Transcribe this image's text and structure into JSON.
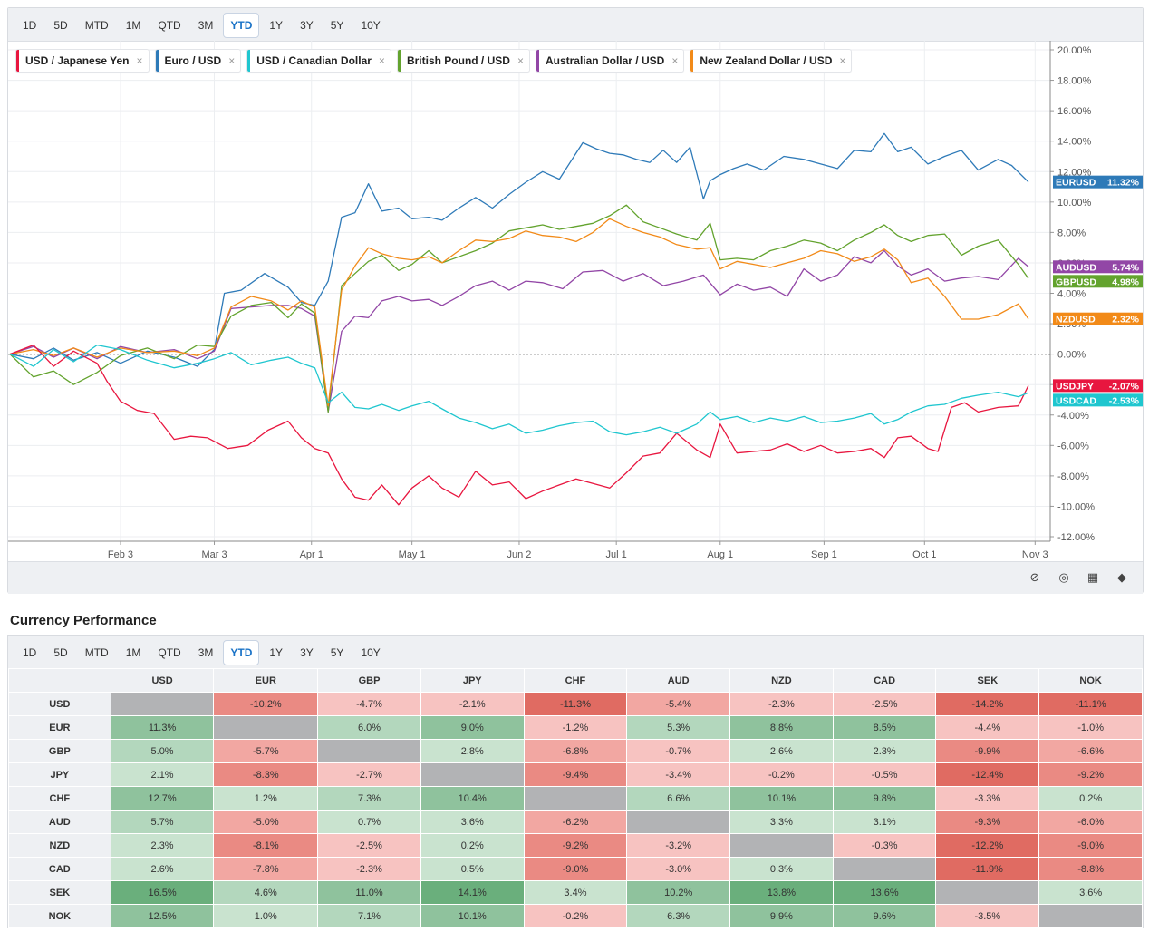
{
  "timeframes": [
    "1D",
    "5D",
    "MTD",
    "1M",
    "QTD",
    "3M",
    "YTD",
    "1Y",
    "3Y",
    "5Y",
    "10Y"
  ],
  "active_timeframe": "YTD",
  "chips": [
    {
      "label": "USD / Japanese Yen",
      "color": "#e8163f"
    },
    {
      "label": "Euro / USD",
      "color": "#2e7ab8"
    },
    {
      "label": "USD / Canadian Dollar",
      "color": "#1fc6cf"
    },
    {
      "label": "British Pound / USD",
      "color": "#63a32e"
    },
    {
      "label": "Australian Dollar / USD",
      "color": "#9246a6"
    },
    {
      "label": "New Zealand Dollar / USD",
      "color": "#f28a18"
    }
  ],
  "chip_close": "×",
  "tool_icons": [
    "eye-slash-icon",
    "target-icon",
    "grid-icon",
    "tag-icon"
  ],
  "chart_data": {
    "type": "line",
    "xlabel": "",
    "ylabel": "",
    "ylim": [
      -12,
      20
    ],
    "y_ticks": [
      "20.00%",
      "18.00%",
      "16.00%",
      "14.00%",
      "12.00%",
      "10.00%",
      "8.00%",
      "6.00%",
      "4.00%",
      "2.00%",
      "0.00%",
      "-2.00%",
      "-4.00%",
      "-6.00%",
      "-8.00%",
      "-10.00%",
      "-12.00%"
    ],
    "x_ticks": [
      "Feb 3",
      "Mar 3",
      "Apr 1",
      "May 1",
      "Jun 2",
      "Jul 1",
      "Aug 1",
      "Sep 1",
      "Oct 1",
      "Nov 3"
    ],
    "x_tick_days": [
      34,
      62,
      91,
      121,
      153,
      182,
      213,
      244,
      274,
      307
    ],
    "x_range": [
      1,
      308
    ],
    "series": [
      {
        "name": "EURUSD",
        "label": "11.32%",
        "color": "#2e7ab8",
        "final": 11.32,
        "x": [
          1,
          8,
          14,
          20,
          27,
          34,
          42,
          50,
          57,
          62,
          65,
          70,
          77,
          84,
          88,
          92,
          96,
          100,
          104,
          108,
          112,
          117,
          121,
          126,
          130,
          135,
          140,
          145,
          150,
          155,
          160,
          165,
          172,
          176,
          180,
          184,
          188,
          192,
          196,
          200,
          204,
          208,
          210,
          213,
          217,
          221,
          226,
          232,
          238,
          243,
          248,
          253,
          258,
          262,
          266,
          270,
          275,
          280,
          285,
          290,
          296,
          300,
          305
        ],
        "y": [
          0,
          -0.3,
          0.4,
          -0.4,
          0.1,
          -0.6,
          0.2,
          -0.2,
          -0.8,
          0.3,
          4,
          4.2,
          5.3,
          4.4,
          3.4,
          3.2,
          4.8,
          9,
          9.3,
          11.2,
          9.4,
          9.6,
          8.9,
          9,
          8.8,
          9.6,
          10.3,
          9.6,
          10.5,
          11.3,
          12,
          11.5,
          13.9,
          13.5,
          13.2,
          13.1,
          12.8,
          12.6,
          13.4,
          12.6,
          13.6,
          10.2,
          11.4,
          11.8,
          12.2,
          12.5,
          12.1,
          13,
          12.8,
          12.5,
          12.2,
          13.4,
          13.3,
          14.5,
          13.3,
          13.6,
          12.5,
          13,
          13.4,
          12.1,
          12.8,
          12.4,
          11.32
        ]
      },
      {
        "name": "AUDUSD",
        "label": "5.74%",
        "color": "#9246a6",
        "final": 5.74,
        "x": [
          1,
          8,
          14,
          20,
          27,
          34,
          42,
          50,
          57,
          62,
          67,
          73,
          79,
          84,
          88,
          92,
          96,
          100,
          104,
          108,
          112,
          117,
          121,
          126,
          130,
          135,
          140,
          145,
          150,
          155,
          160,
          166,
          172,
          178,
          184,
          190,
          196,
          202,
          208,
          213,
          218,
          223,
          228,
          233,
          238,
          243,
          248,
          253,
          258,
          262,
          266,
          270,
          275,
          280,
          285,
          290,
          296,
          302,
          305
        ],
        "y": [
          0,
          0.5,
          -0.2,
          0.4,
          -0.3,
          0.5,
          0.1,
          0.3,
          -0.3,
          0.2,
          3,
          3.1,
          3.2,
          3.2,
          3,
          2.5,
          -3.8,
          1.5,
          2.5,
          2.4,
          3.5,
          3.8,
          3.5,
          3.6,
          3.2,
          3.8,
          4.5,
          4.8,
          4.2,
          4.8,
          4.7,
          4.3,
          5.4,
          5.5,
          4.8,
          5.3,
          4.5,
          4.8,
          5.2,
          3.9,
          4.6,
          4.2,
          4.4,
          3.8,
          5.6,
          4.8,
          5.2,
          6.4,
          6,
          6.8,
          5.8,
          5.2,
          5.6,
          4.8,
          5,
          5.1,
          4.9,
          6.3,
          5.74
        ]
      },
      {
        "name": "GBPUSD",
        "label": "4.98%",
        "color": "#63a32e",
        "final": 4.98,
        "x": [
          1,
          8,
          14,
          20,
          27,
          34,
          42,
          50,
          57,
          62,
          67,
          73,
          79,
          84,
          88,
          92,
          96,
          100,
          104,
          108,
          112,
          117,
          121,
          126,
          130,
          135,
          140,
          145,
          150,
          155,
          160,
          165,
          170,
          175,
          180,
          185,
          190,
          195,
          200,
          206,
          210,
          213,
          218,
          223,
          228,
          233,
          238,
          243,
          248,
          253,
          258,
          262,
          266,
          270,
          275,
          280,
          285,
          290,
          296,
          302,
          305
        ],
        "y": [
          0,
          -1.5,
          -1.1,
          -2,
          -1.2,
          -0.1,
          0.4,
          -0.3,
          0.6,
          0.5,
          2.5,
          3.2,
          3.4,
          2.4,
          3.3,
          2.7,
          -3.8,
          4.5,
          5.3,
          6.1,
          6.5,
          5.5,
          5.9,
          6.8,
          6,
          6.4,
          6.8,
          7.3,
          8.1,
          8.3,
          8.5,
          8.2,
          8.4,
          8.6,
          9.1,
          9.8,
          8.7,
          8.3,
          7.9,
          7.5,
          8.6,
          6.2,
          6.3,
          6.2,
          6.8,
          7.1,
          7.5,
          7.3,
          6.8,
          7.5,
          8,
          8.5,
          7.8,
          7.4,
          7.8,
          7.9,
          6.5,
          7.1,
          7.5,
          5.9,
          4.98
        ]
      },
      {
        "name": "NZDUSD",
        "label": "2.32%",
        "color": "#f28a18",
        "final": 2.32,
        "x": [
          1,
          8,
          14,
          20,
          27,
          34,
          42,
          50,
          57,
          62,
          67,
          73,
          79,
          84,
          88,
          92,
          96,
          100,
          104,
          108,
          112,
          117,
          121,
          126,
          130,
          135,
          140,
          145,
          150,
          155,
          160,
          165,
          170,
          175,
          180,
          185,
          190,
          195,
          200,
          206,
          210,
          213,
          218,
          223,
          228,
          233,
          238,
          243,
          248,
          253,
          258,
          262,
          266,
          270,
          275,
          280,
          285,
          290,
          296,
          302,
          305
        ],
        "y": [
          0,
          0.3,
          -0.1,
          0.4,
          -0.2,
          0.4,
          0.1,
          0.2,
          -0.1,
          0.4,
          3.1,
          3.8,
          3.5,
          2.9,
          3.5,
          3.1,
          -3.4,
          4.2,
          5.8,
          7,
          6.6,
          6.3,
          6.2,
          6.4,
          6,
          6.8,
          7.5,
          7.4,
          7.6,
          8.1,
          7.8,
          7.7,
          7.4,
          8,
          8.9,
          8.4,
          8,
          7.7,
          7.2,
          6.9,
          7,
          5.6,
          6.1,
          5.9,
          5.7,
          6,
          6.3,
          6.8,
          6.6,
          6.1,
          6.4,
          6.9,
          6.2,
          4.7,
          5,
          3.8,
          2.3,
          2.3,
          2.6,
          3.3,
          2.32
        ]
      },
      {
        "name": "USDJPY",
        "label": "-2.07%",
        "color": "#e8163f",
        "final": -2.07,
        "x": [
          1,
          8,
          14,
          20,
          27,
          30,
          34,
          39,
          44,
          50,
          55,
          60,
          66,
          72,
          78,
          84,
          88,
          92,
          96,
          100,
          104,
          108,
          112,
          117,
          121,
          126,
          130,
          135,
          140,
          145,
          150,
          155,
          160,
          165,
          170,
          175,
          180,
          185,
          190,
          195,
          200,
          206,
          210,
          213,
          218,
          223,
          228,
          233,
          238,
          243,
          248,
          253,
          258,
          262,
          266,
          270,
          275,
          278,
          282,
          286,
          290,
          296,
          302,
          305
        ],
        "y": [
          0,
          0.6,
          -0.8,
          0.2,
          -0.6,
          -1.8,
          -3.1,
          -3.7,
          -3.9,
          -5.6,
          -5.4,
          -5.5,
          -6.2,
          -6,
          -5,
          -4.4,
          -5.5,
          -6.2,
          -6.5,
          -8.2,
          -9.4,
          -9.6,
          -8.6,
          -9.9,
          -8.8,
          -8,
          -8.8,
          -9.4,
          -7.7,
          -8.6,
          -8.4,
          -9.5,
          -9,
          -8.6,
          -8.2,
          -8.5,
          -8.8,
          -7.8,
          -6.7,
          -6.5,
          -5.2,
          -6.3,
          -6.8,
          -4.6,
          -6.5,
          -6.4,
          -6.3,
          -5.9,
          -6.4,
          -6,
          -6.5,
          -6.4,
          -6.2,
          -6.8,
          -5.5,
          -5.4,
          -6.2,
          -6.4,
          -3.5,
          -3.2,
          -3.8,
          -3.5,
          -3.4,
          -2.07
        ]
      },
      {
        "name": "USDCAD",
        "label": "-2.53%",
        "color": "#1fc6cf",
        "final": -2.53,
        "x": [
          1,
          8,
          14,
          20,
          27,
          34,
          42,
          50,
          57,
          62,
          67,
          73,
          79,
          84,
          88,
          92,
          96,
          100,
          104,
          108,
          112,
          117,
          121,
          126,
          130,
          135,
          140,
          145,
          150,
          155,
          160,
          165,
          170,
          175,
          180,
          185,
          190,
          195,
          200,
          206,
          210,
          213,
          218,
          223,
          228,
          233,
          238,
          243,
          248,
          253,
          258,
          262,
          266,
          270,
          275,
          280,
          285,
          290,
          296,
          302,
          305
        ],
        "y": [
          0,
          -0.8,
          0.3,
          -0.5,
          0.6,
          0.3,
          -0.4,
          -0.9,
          -0.6,
          -0.3,
          0.1,
          -0.7,
          -0.4,
          -0.2,
          -0.6,
          -0.9,
          -3.2,
          -2.5,
          -3.5,
          -3.6,
          -3.3,
          -3.7,
          -3.4,
          -3.1,
          -3.6,
          -4.2,
          -4.5,
          -4.9,
          -4.6,
          -5.2,
          -5,
          -4.7,
          -4.5,
          -4.4,
          -5.1,
          -5.3,
          -5.1,
          -4.8,
          -5.2,
          -4.6,
          -3.8,
          -4.3,
          -4.1,
          -4.5,
          -4.2,
          -4.4,
          -4.1,
          -4.5,
          -4.4,
          -4.2,
          -3.9,
          -4.6,
          -4.3,
          -3.8,
          -3.4,
          -3.3,
          -2.9,
          -2.7,
          -2.5,
          -2.8,
          -2.53
        ]
      }
    ]
  },
  "table": {
    "title": "Currency Performance",
    "columns": [
      "USD",
      "EUR",
      "GBP",
      "JPY",
      "CHF",
      "AUD",
      "NZD",
      "CAD",
      "SEK",
      "NOK"
    ],
    "rows": [
      {
        "label": "USD",
        "cells": [
          "",
          "-10.2%",
          "-4.7%",
          "-2.1%",
          "-11.3%",
          "-5.4%",
          "-2.3%",
          "-2.5%",
          "-14.2%",
          "-11.1%"
        ]
      },
      {
        "label": "EUR",
        "cells": [
          "11.3%",
          "",
          "6.0%",
          "9.0%",
          "-1.2%",
          "5.3%",
          "8.8%",
          "8.5%",
          "-4.4%",
          "-1.0%"
        ]
      },
      {
        "label": "GBP",
        "cells": [
          "5.0%",
          "-5.7%",
          "",
          "2.8%",
          "-6.8%",
          "-0.7%",
          "2.6%",
          "2.3%",
          "-9.9%",
          "-6.6%"
        ]
      },
      {
        "label": "JPY",
        "cells": [
          "2.1%",
          "-8.3%",
          "-2.7%",
          "",
          "-9.4%",
          "-3.4%",
          "-0.2%",
          "-0.5%",
          "-12.4%",
          "-9.2%"
        ]
      },
      {
        "label": "CHF",
        "cells": [
          "12.7%",
          "1.2%",
          "7.3%",
          "10.4%",
          "",
          "6.6%",
          "10.1%",
          "9.8%",
          "-3.3%",
          "0.2%"
        ]
      },
      {
        "label": "AUD",
        "cells": [
          "5.7%",
          "-5.0%",
          "0.7%",
          "3.6%",
          "-6.2%",
          "",
          "3.3%",
          "3.1%",
          "-9.3%",
          "-6.0%"
        ]
      },
      {
        "label": "NZD",
        "cells": [
          "2.3%",
          "-8.1%",
          "-2.5%",
          "0.2%",
          "-9.2%",
          "-3.2%",
          "",
          "-0.3%",
          "-12.2%",
          "-9.0%"
        ]
      },
      {
        "label": "CAD",
        "cells": [
          "2.6%",
          "-7.8%",
          "-2.3%",
          "0.5%",
          "-9.0%",
          "-3.0%",
          "0.3%",
          "",
          "-11.9%",
          "-8.8%"
        ]
      },
      {
        "label": "SEK",
        "cells": [
          "16.5%",
          "4.6%",
          "11.0%",
          "14.1%",
          "3.4%",
          "10.2%",
          "13.8%",
          "13.6%",
          "",
          "3.6%"
        ]
      },
      {
        "label": "NOK",
        "cells": [
          "12.5%",
          "1.0%",
          "7.1%",
          "10.1%",
          "-0.2%",
          "6.3%",
          "9.9%",
          "9.6%",
          "-3.5%",
          ""
        ]
      }
    ]
  }
}
